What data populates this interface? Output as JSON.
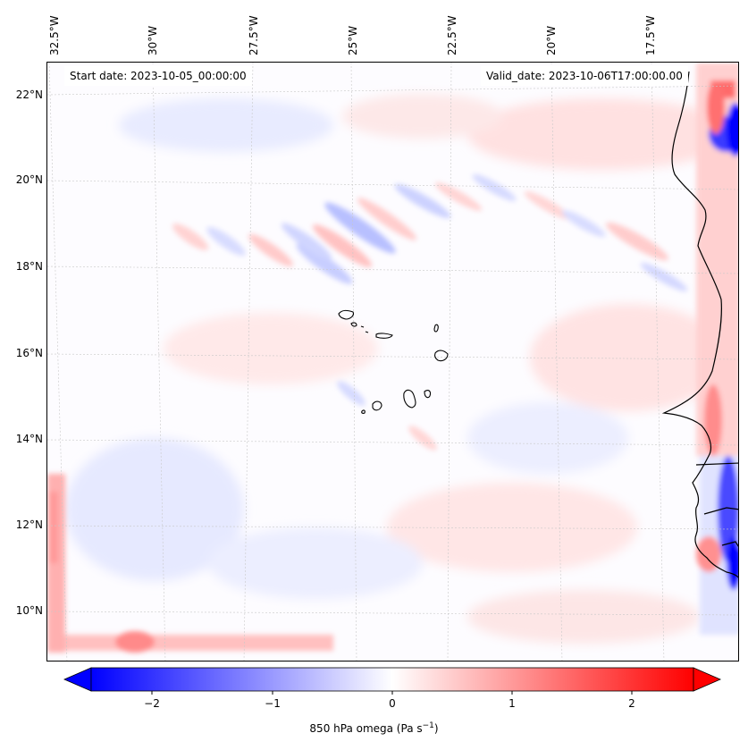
{
  "map": {
    "start_date": "Start date: 2023-10-05_00:00:00",
    "valid_date": "Valid_date: 2023-10-06T17:00:00.00",
    "lon_labels": [
      "32.5°W",
      "30°W",
      "27.5°W",
      "25°W",
      "22.5°W",
      "20°W",
      "17.5°W"
    ],
    "lat_labels": [
      "22°N",
      "20°N",
      "18°N",
      "16°N",
      "14°N",
      "12°N",
      "10°N"
    ],
    "extent": {
      "lon_min": -33.0,
      "lon_max": -15.6,
      "lat_min": 8.8,
      "lat_max": 22.7
    },
    "field": "850 hPa omega",
    "colormap": {
      "negative": "#0000ff",
      "zero": "#ffffff",
      "positive": "#ff0000"
    },
    "coastline_color": "#000000",
    "gridlines": true
  },
  "colorbar": {
    "ticks": [
      "−2",
      "−1",
      "0",
      "1",
      "2"
    ],
    "tick_values": [
      -2,
      -1,
      0,
      1,
      2
    ],
    "range": [
      -2.5,
      2.5
    ],
    "extend": "both",
    "label_text": "850 hPa omega (Pa s",
    "label_sup": "−1",
    "label_close": ")"
  }
}
